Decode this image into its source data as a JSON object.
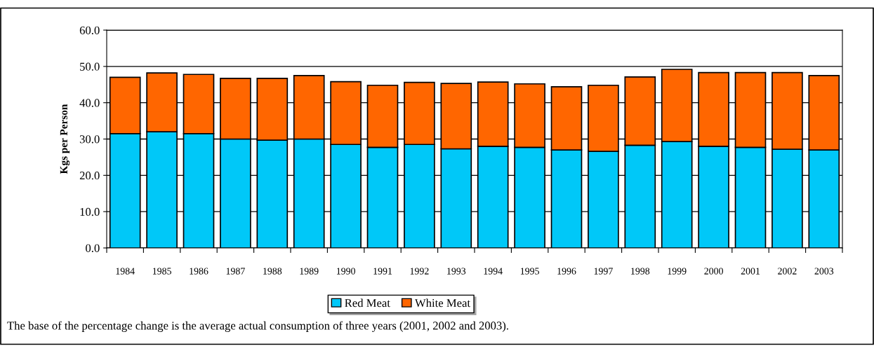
{
  "chart_data": {
    "type": "bar",
    "stacked": true,
    "ylabel": "Kgs per Person",
    "categories": [
      "1984",
      "1985",
      "1986",
      "1987",
      "1988",
      "1989",
      "1990",
      "1991",
      "1992",
      "1993",
      "1994",
      "1995",
      "1996",
      "1997",
      "1998",
      "1999",
      "2000",
      "2001",
      "2002",
      "2003"
    ],
    "series": [
      {
        "name": "Red Meat",
        "color": "#00c8f8",
        "values": [
          31.5,
          32.0,
          31.5,
          30.0,
          29.7,
          30.0,
          28.5,
          27.7,
          28.5,
          27.3,
          28.0,
          27.7,
          27.0,
          26.6,
          28.3,
          29.3,
          28.0,
          27.7,
          27.2,
          27.0
        ]
      },
      {
        "name": "White Meat",
        "color": "#ff6600",
        "values": [
          15.5,
          16.2,
          16.3,
          16.7,
          17.0,
          17.5,
          17.3,
          17.1,
          17.1,
          18.0,
          17.7,
          17.5,
          17.4,
          18.2,
          18.8,
          19.9,
          20.3,
          20.6,
          21.1,
          20.5
        ]
      }
    ],
    "ylim": [
      0,
      60
    ],
    "yticks": [
      {
        "value": 0,
        "label": "0.0"
      },
      {
        "value": 10,
        "label": "10.0"
      },
      {
        "value": 20,
        "label": "20.0"
      },
      {
        "value": 30,
        "label": "30.0"
      },
      {
        "value": 40,
        "label": "40.0"
      },
      {
        "value": 50,
        "label": "50.0"
      },
      {
        "value": 60,
        "label": "60.0"
      }
    ],
    "grid": "y",
    "legend": "bottom",
    "annotations": [
      "The base of the percentage change is the average actual consumption of three years (2001, 2002 and 2003)."
    ]
  }
}
